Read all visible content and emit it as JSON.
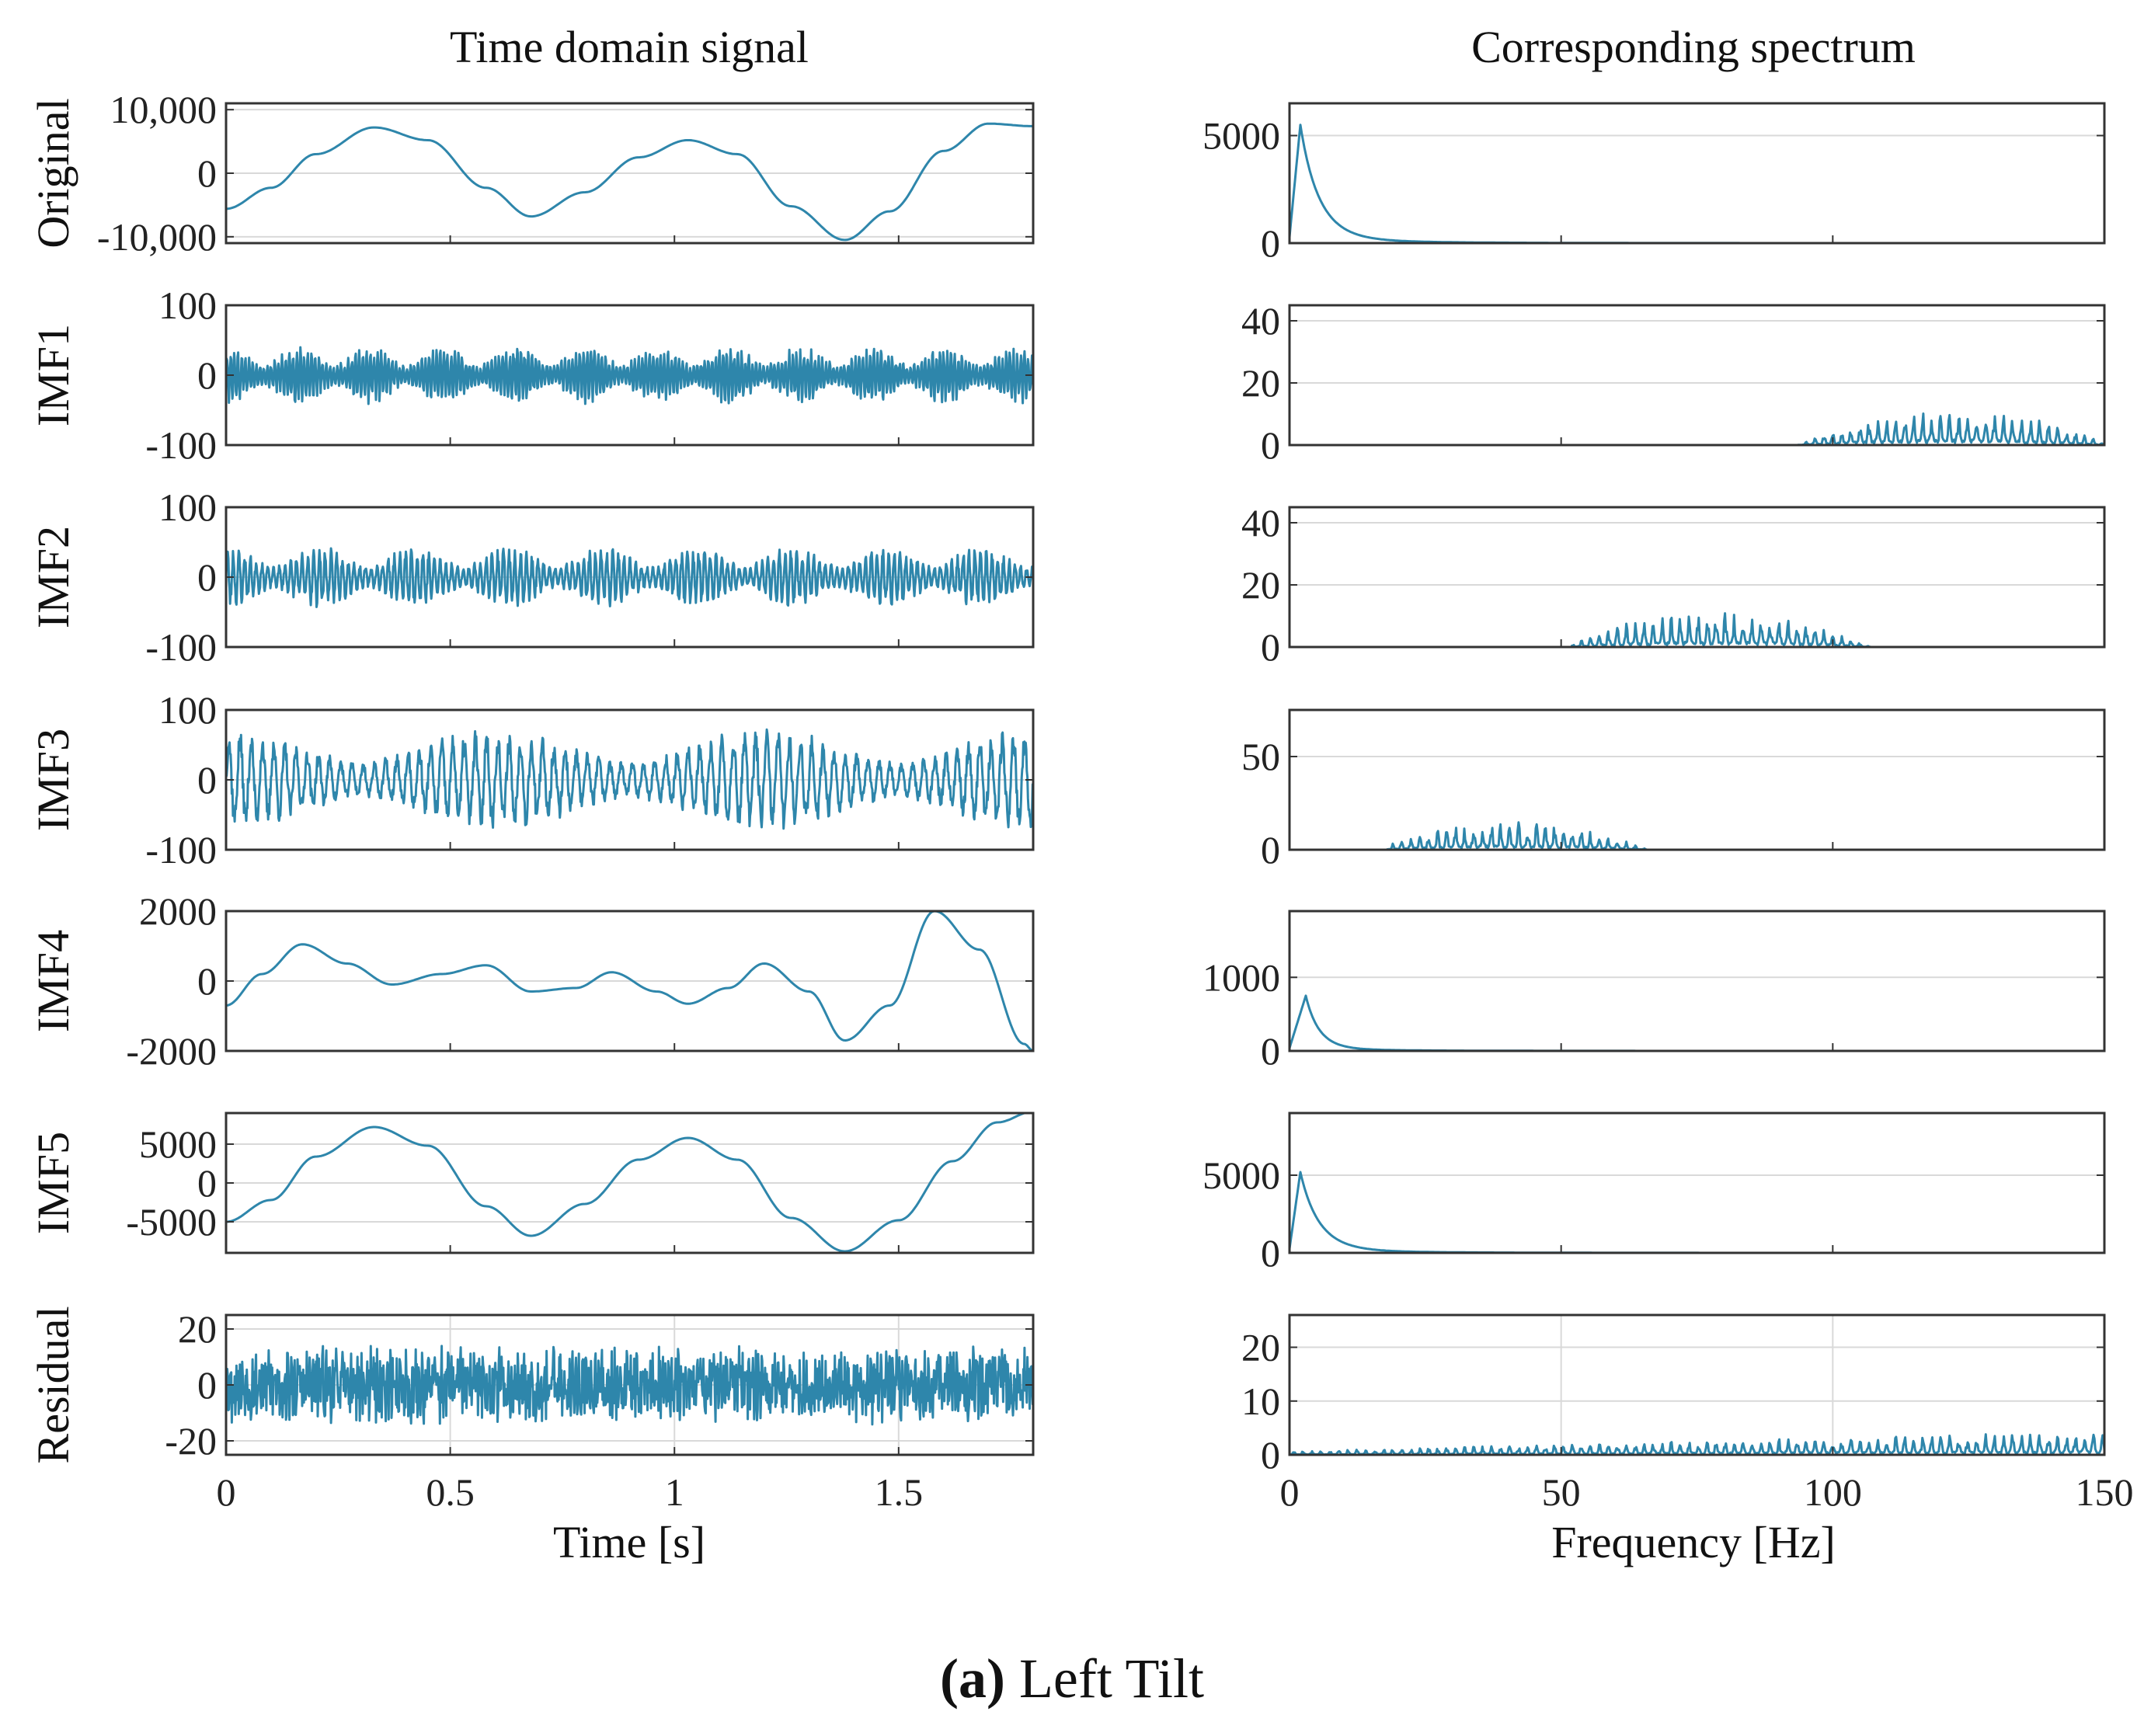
{
  "figure": {
    "caption_label": "(a)",
    "caption_text": "Left Tilt",
    "line_color": "#2e86ab"
  },
  "chart_data": [
    {
      "type": "line",
      "panel": "Time domain signal",
      "title": "Time domain signal",
      "xlabel": "Time [s]",
      "xlim": [
        0,
        1.8
      ],
      "xticks": [
        0,
        0.5,
        1,
        1.5
      ],
      "xtick_labels": [
        "0",
        "0.5",
        "1",
        "1.5"
      ],
      "rows": [
        {
          "ylabel": "Original",
          "ylim": [
            -11000,
            11000
          ],
          "yticks": [
            10000,
            0,
            -10000
          ],
          "ytick_labels": [
            "10,000",
            "0",
            "-10,000"
          ],
          "series": [
            {
              "name": "Original",
              "kind": "smooth",
              "x": [
                0,
                0.1,
                0.2,
                0.33,
                0.45,
                0.58,
                0.68,
                0.8,
                0.92,
                1.03,
                1.14,
                1.26,
                1.38,
                1.48,
                1.6,
                1.7,
                1.8
              ],
              "y": [
                -5600,
                -2300,
                3000,
                7200,
                5200,
                -2300,
                -6800,
                -3000,
                2500,
                5200,
                3000,
                -5200,
                -10500,
                -6000,
                3500,
                7800,
                7400
              ]
            }
          ]
        },
        {
          "ylabel": "IMF1",
          "ylim": [
            -100,
            100
          ],
          "yticks": [
            100,
            0,
            -100
          ],
          "ytick_labels": [
            "100",
            "0",
            "-100"
          ],
          "series": [
            {
              "name": "IMF1",
              "kind": "noise",
              "freq_hz": 122,
              "amplitude": 40,
              "burst_period_s": 0.16,
              "seed": 11,
              "x_range": [
                0,
                1.8
              ]
            }
          ]
        },
        {
          "ylabel": "IMF2",
          "ylim": [
            -100,
            100
          ],
          "yticks": [
            100,
            0,
            -100
          ],
          "ytick_labels": [
            "100",
            "0",
            "-100"
          ],
          "series": [
            {
              "name": "IMF2",
              "kind": "noise",
              "freq_hz": 78,
              "amplitude": 42,
              "burst_period_s": 0.21,
              "seed": 23,
              "x_range": [
                0,
                1.8
              ]
            }
          ]
        },
        {
          "ylabel": "IMF3",
          "ylim": [
            -100,
            100
          ],
          "yticks": [
            100,
            0,
            -100
          ],
          "ytick_labels": [
            "100",
            "0",
            "-100"
          ],
          "series": [
            {
              "name": "IMF3",
              "kind": "noise",
              "freq_hz": 40,
              "amplitude": 70,
              "burst_period_s": 0.6,
              "seed": 37,
              "x_range": [
                0,
                1.8
              ]
            }
          ]
        },
        {
          "ylabel": "IMF4",
          "ylim": [
            -2000,
            2000
          ],
          "yticks": [
            2000,
            0,
            -2000
          ],
          "ytick_labels": [
            "2000",
            "0",
            "-2000"
          ],
          "series": [
            {
              "name": "IMF4",
              "kind": "smooth",
              "x": [
                0,
                0.08,
                0.17,
                0.27,
                0.37,
                0.48,
                0.58,
                0.68,
                0.78,
                0.86,
                0.96,
                1.03,
                1.12,
                1.2,
                1.3,
                1.38,
                1.48,
                1.58,
                1.68,
                1.78,
                1.8
              ],
              "y": [
                -700,
                200,
                1050,
                500,
                -100,
                200,
                450,
                -300,
                -200,
                250,
                -300,
                -650,
                -200,
                500,
                -300,
                -1700,
                -700,
                2000,
                900,
                -1800,
                -2000
              ]
            }
          ]
        },
        {
          "ylabel": "IMF5",
          "ylim": [
            -9000,
            9000
          ],
          "yticks": [
            5000,
            0,
            -5000
          ],
          "ytick_labels": [
            "5000",
            "0",
            "-5000"
          ],
          "series": [
            {
              "name": "IMF5",
              "kind": "smooth",
              "x": [
                0,
                0.1,
                0.2,
                0.33,
                0.45,
                0.58,
                0.68,
                0.8,
                0.92,
                1.03,
                1.14,
                1.26,
                1.38,
                1.5,
                1.62,
                1.72,
                1.8
              ],
              "y": [
                -5000,
                -2200,
                3400,
                7200,
                4800,
                -3000,
                -6800,
                -2700,
                3000,
                5800,
                3000,
                -4500,
                -8800,
                -4800,
                2800,
                7800,
                9200
              ]
            }
          ]
        },
        {
          "ylabel": "Residual",
          "ylim": [
            -25,
            25
          ],
          "yticks": [
            20,
            0,
            -20
          ],
          "ytick_labels": [
            "20",
            "0",
            "-20"
          ],
          "series": [
            {
              "name": "Residual",
              "kind": "noise",
              "freq_hz": 140,
              "amplitude": 13,
              "burst_period_s": 0,
              "seed": 53,
              "x_range": [
                0,
                1.8
              ]
            }
          ]
        }
      ]
    },
    {
      "type": "line",
      "panel": "Corresponding spectrum",
      "title": "Corresponding spectrum",
      "xlabel": "Frequency [Hz]",
      "xlim": [
        0,
        150
      ],
      "xticks": [
        0,
        50,
        100,
        150
      ],
      "xtick_labels": [
        "0",
        "50",
        "100",
        "150"
      ],
      "rows": [
        {
          "ylabel": "Original",
          "ylim": [
            0,
            6500
          ],
          "yticks": [
            5000,
            0
          ],
          "ytick_labels": [
            "5000",
            "0"
          ],
          "series": [
            {
              "name": "Original spectrum",
              "kind": "peak_decay",
              "peak_hz": 2,
              "peak": 5500,
              "decay": 3.5
            }
          ]
        },
        {
          "ylabel": "IMF1",
          "ylim": [
            0,
            45
          ],
          "yticks": [
            40,
            20,
            0
          ],
          "ytick_labels": [
            "40",
            "20",
            "0"
          ],
          "series": [
            {
              "name": "IMF1 spectrum",
              "kind": "band",
              "band_hz": [
                93,
                150
              ],
              "center_hz": 122,
              "peak": 12,
              "seed": 5
            }
          ]
        },
        {
          "ylabel": "IMF2",
          "ylim": [
            0,
            45
          ],
          "yticks": [
            40,
            20,
            0
          ],
          "ytick_labels": [
            "40",
            "20",
            "0"
          ],
          "series": [
            {
              "name": "IMF2 spectrum",
              "kind": "band",
              "band_hz": [
                52,
                108
              ],
              "center_hz": 79,
              "peak": 12,
              "seed": 9
            }
          ]
        },
        {
          "ylabel": "IMF3",
          "ylim": [
            0,
            75
          ],
          "yticks": [
            50,
            0
          ],
          "ytick_labels": [
            "50",
            "0"
          ],
          "series": [
            {
              "name": "IMF3 spectrum",
              "kind": "band",
              "band_hz": [
                18,
                68
              ],
              "center_hz": 41,
              "peak": 15,
              "seed": 13
            }
          ]
        },
        {
          "ylabel": "IMF4",
          "ylim": [
            0,
            1900
          ],
          "yticks": [
            1000,
            0
          ],
          "ytick_labels": [
            "1000",
            "0"
          ],
          "series": [
            {
              "name": "IMF4 spectrum",
              "kind": "peak_decay",
              "peak_hz": 3,
              "peak": 750,
              "decay": 2.5
            }
          ]
        },
        {
          "ylabel": "IMF5",
          "ylim": [
            0,
            9000
          ],
          "yticks": [
            5000,
            0
          ],
          "ytick_labels": [
            "5000",
            "0"
          ],
          "series": [
            {
              "name": "IMF5 spectrum",
              "kind": "peak_decay",
              "peak_hz": 2,
              "peak": 5200,
              "decay": 3.5
            }
          ]
        },
        {
          "ylabel": "Residual",
          "ylim": [
            0,
            26
          ],
          "yticks": [
            20,
            10,
            0
          ],
          "ytick_labels": [
            "20",
            "10",
            "0"
          ],
          "series": [
            {
              "name": "Residual spectrum",
              "kind": "broadband",
              "band_hz": [
                0,
                150
              ],
              "peak": 4.5,
              "seed": 17
            }
          ]
        }
      ]
    }
  ]
}
